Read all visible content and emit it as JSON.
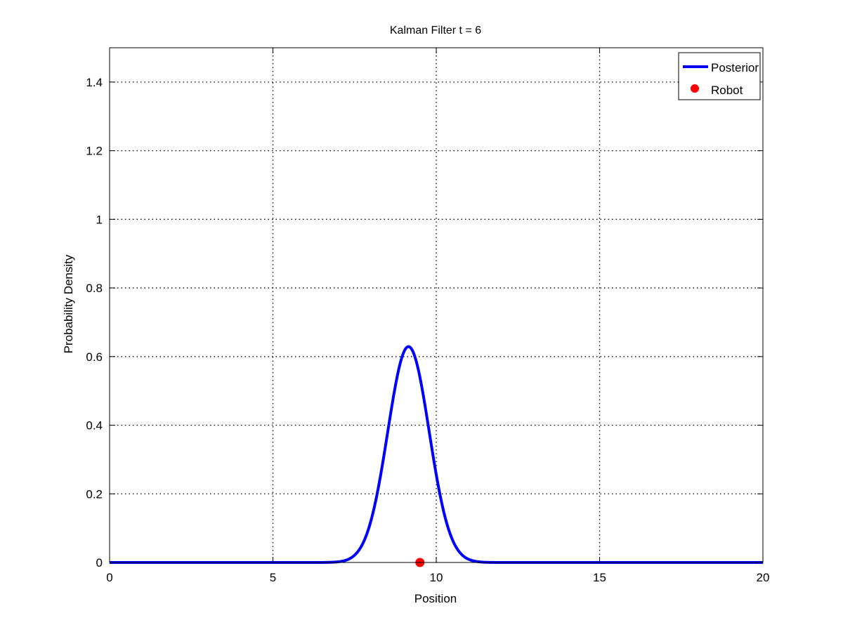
{
  "chart_data": {
    "type": "line",
    "title": "Kalman Filter t = 6",
    "xlabel": "Position",
    "ylabel": "Probability Density",
    "xlim": [
      0,
      20
    ],
    "ylim": [
      0,
      1.5
    ],
    "xticks": [
      0,
      5,
      10,
      15,
      20
    ],
    "yticks": [
      0,
      0.2,
      0.4,
      0.6,
      0.8,
      1,
      1.2,
      1.4
    ],
    "grid": true,
    "grid_style": "dotted",
    "legend_position": "top-right",
    "series": [
      {
        "name": "Posterior",
        "kind": "gaussian_pdf",
        "mean": 9.15,
        "std": 0.634,
        "peak": 0.629,
        "color": "#0000ff"
      },
      {
        "name": "Robot",
        "kind": "marker",
        "x": 9.5,
        "y": 0,
        "color": "#ff0000"
      }
    ]
  }
}
